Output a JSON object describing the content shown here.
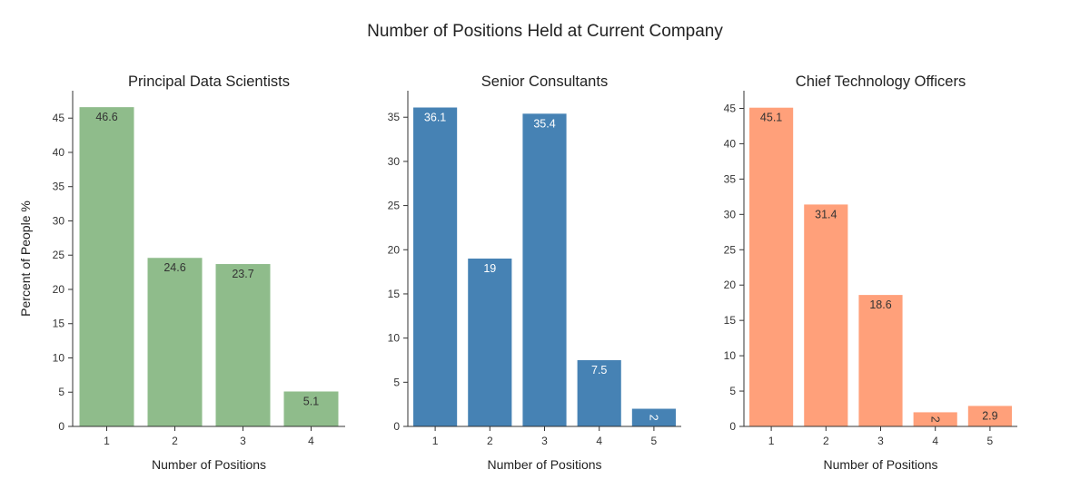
{
  "figure": {
    "title": "Number of Positions Held at Current Company",
    "y_axis_title": "Percent of People %"
  },
  "chart_data": [
    {
      "type": "bar",
      "title": "Principal Data Scientists",
      "xlabel": "Number of Positions",
      "ylabel": "Percent of People %",
      "categories": [
        "1",
        "2",
        "3",
        "4"
      ],
      "values": [
        46.6,
        24.6,
        23.7,
        5.1
      ],
      "labels": [
        "46.6",
        "24.6",
        "23.7",
        "5.1"
      ],
      "ylim": [
        0,
        49
      ],
      "yticks": [
        0,
        5,
        10,
        15,
        20,
        25,
        30,
        35,
        40,
        45
      ],
      "color": "#8fbc8b",
      "label_color": "#333333"
    },
    {
      "type": "bar",
      "title": "Senior Consultants",
      "xlabel": "Number of Positions",
      "ylabel": "",
      "categories": [
        "1",
        "2",
        "3",
        "4",
        "5"
      ],
      "values": [
        36.1,
        19,
        35.4,
        7.5,
        2
      ],
      "labels": [
        "36.1",
        "19",
        "35.4",
        "7.5",
        "2"
      ],
      "ylim": [
        0,
        38
      ],
      "yticks": [
        0,
        5,
        10,
        15,
        20,
        25,
        30,
        35
      ],
      "color": "#4682b4",
      "label_color": "#ffffff"
    },
    {
      "type": "bar",
      "title": "Chief Technology Officers",
      "xlabel": "Number of Positions",
      "ylabel": "",
      "categories": [
        "1",
        "2",
        "3",
        "4",
        "5"
      ],
      "values": [
        45.1,
        31.4,
        18.6,
        2,
        2.9
      ],
      "labels": [
        "45.1",
        "31.4",
        "18.6",
        "2",
        "2.9"
      ],
      "ylim": [
        0,
        47.5
      ],
      "yticks": [
        0,
        5,
        10,
        15,
        20,
        25,
        30,
        35,
        40,
        45
      ],
      "color": "#ffa07a",
      "label_color": "#333333"
    }
  ]
}
